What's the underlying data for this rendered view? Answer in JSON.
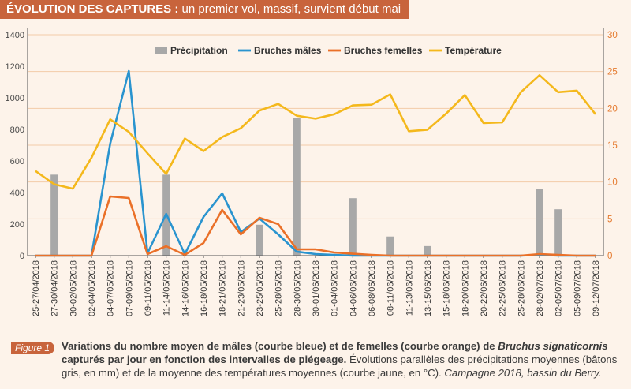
{
  "header": {
    "title_bold": "ÉVOLUTION DES CAPTURES :",
    "title_rest": " un premier vol, massif, survient début mai"
  },
  "colors": {
    "background": "#fdf3ea",
    "accent": "#c8643c",
    "precipitation": "#a8a8a8",
    "males": "#2a94cf",
    "females": "#ea7028",
    "temperature": "#f4b81c",
    "gridline": "#f2cba8",
    "left_axis_text": "#4a4a4a",
    "right_axis_text": "#e57a2e"
  },
  "chart_data": {
    "type": "bar+line",
    "categories": [
      "25-27/04/2018",
      "27-30/04/2018",
      "30-02/05/2018",
      "02-04/05/2018",
      "04-07/05/2018",
      "07-09/05/2018",
      "09-11/05/2018",
      "11-14/05/2018",
      "14-16/05/2018",
      "16-18/05/2018",
      "18-21/05/2018",
      "21-23/05/2018",
      "23-25/05/2018",
      "25-28/05/2018",
      "28-30/05/2018",
      "30-01/06/2018",
      "01-04/06/2018",
      "04-06/06/2018",
      "06-08/06/2018",
      "08-11/06/2018",
      "11-13/06/2018",
      "13-15/06/2018",
      "15-18/06/2018",
      "18-20/06/2018",
      "20-22/06/2018",
      "22-25/06/2018",
      "25-28/06/2018",
      "28-02/07/2018",
      "02-05/07/2018",
      "05-09/07/2018",
      "09-12/07/2018"
    ],
    "left_axis": {
      "min": 0,
      "max": 1400,
      "ticks": [
        "0",
        "200",
        "400",
        "600",
        "800",
        "1000",
        "1200",
        "1400"
      ]
    },
    "right_axis": {
      "min": 0,
      "max": 30,
      "ticks": [
        "0",
        "5",
        "10",
        "15",
        "20",
        "25",
        "30"
      ]
    },
    "grid": true,
    "legend_position": "top",
    "series": [
      {
        "name": "Précipitation",
        "kind": "bar",
        "axis": "right",
        "values": [
          0,
          11,
          0,
          0,
          0,
          0,
          0,
          11,
          0,
          0,
          0,
          0,
          4.2,
          0,
          18.7,
          0,
          0,
          7.8,
          0,
          2.6,
          0,
          1.3,
          0,
          0,
          0,
          0,
          0,
          9,
          6.3,
          0,
          0
        ]
      },
      {
        "name": "Bruches mâles",
        "kind": "line",
        "axis": "left",
        "values": [
          0,
          0,
          0,
          0,
          710,
          1170,
          15,
          265,
          10,
          245,
          395,
          150,
          235,
          135,
          25,
          10,
          5,
          0,
          0,
          0,
          0,
          0,
          0,
          0,
          0,
          0,
          0,
          5,
          0,
          0,
          0
        ]
      },
      {
        "name": "Bruches femelles",
        "kind": "line",
        "axis": "left",
        "values": [
          0,
          0,
          0,
          0,
          375,
          365,
          10,
          60,
          5,
          80,
          290,
          135,
          240,
          200,
          40,
          40,
          20,
          12,
          5,
          0,
          0,
          0,
          0,
          0,
          0,
          0,
          0,
          10,
          5,
          0,
          0
        ]
      },
      {
        "name": "Température",
        "kind": "line",
        "axis": "right",
        "values": [
          11.5,
          9.7,
          9.1,
          13.3,
          18.5,
          16.8,
          13.9,
          11.1,
          15.9,
          14.2,
          16.1,
          17.3,
          19.7,
          20.6,
          19.0,
          18.6,
          19.2,
          20.4,
          20.5,
          21.9,
          16.9,
          17.1,
          19.3,
          21.8,
          18.0,
          18.1,
          22.2,
          24.5,
          22.2,
          22.4,
          19.2
        ]
      }
    ]
  },
  "caption": {
    "figure_label": "Figure 1",
    "bold_part1": "Variations du nombre moyen de mâles (courbe bleue) et de femelles (courbe orange) de ",
    "bold_italic": "Bruchus signaticornis",
    "bold_part2": " capturés par jour en fonction des intervalles de piégeage.",
    "normal": " Évolutions parallèles des précipitations moyennes (bâtons gris, en mm) et de la moyenne des températures moyennes (courbe jaune, en °C).",
    "italic_end": " Campagne 2018, bassin du Berry."
  }
}
